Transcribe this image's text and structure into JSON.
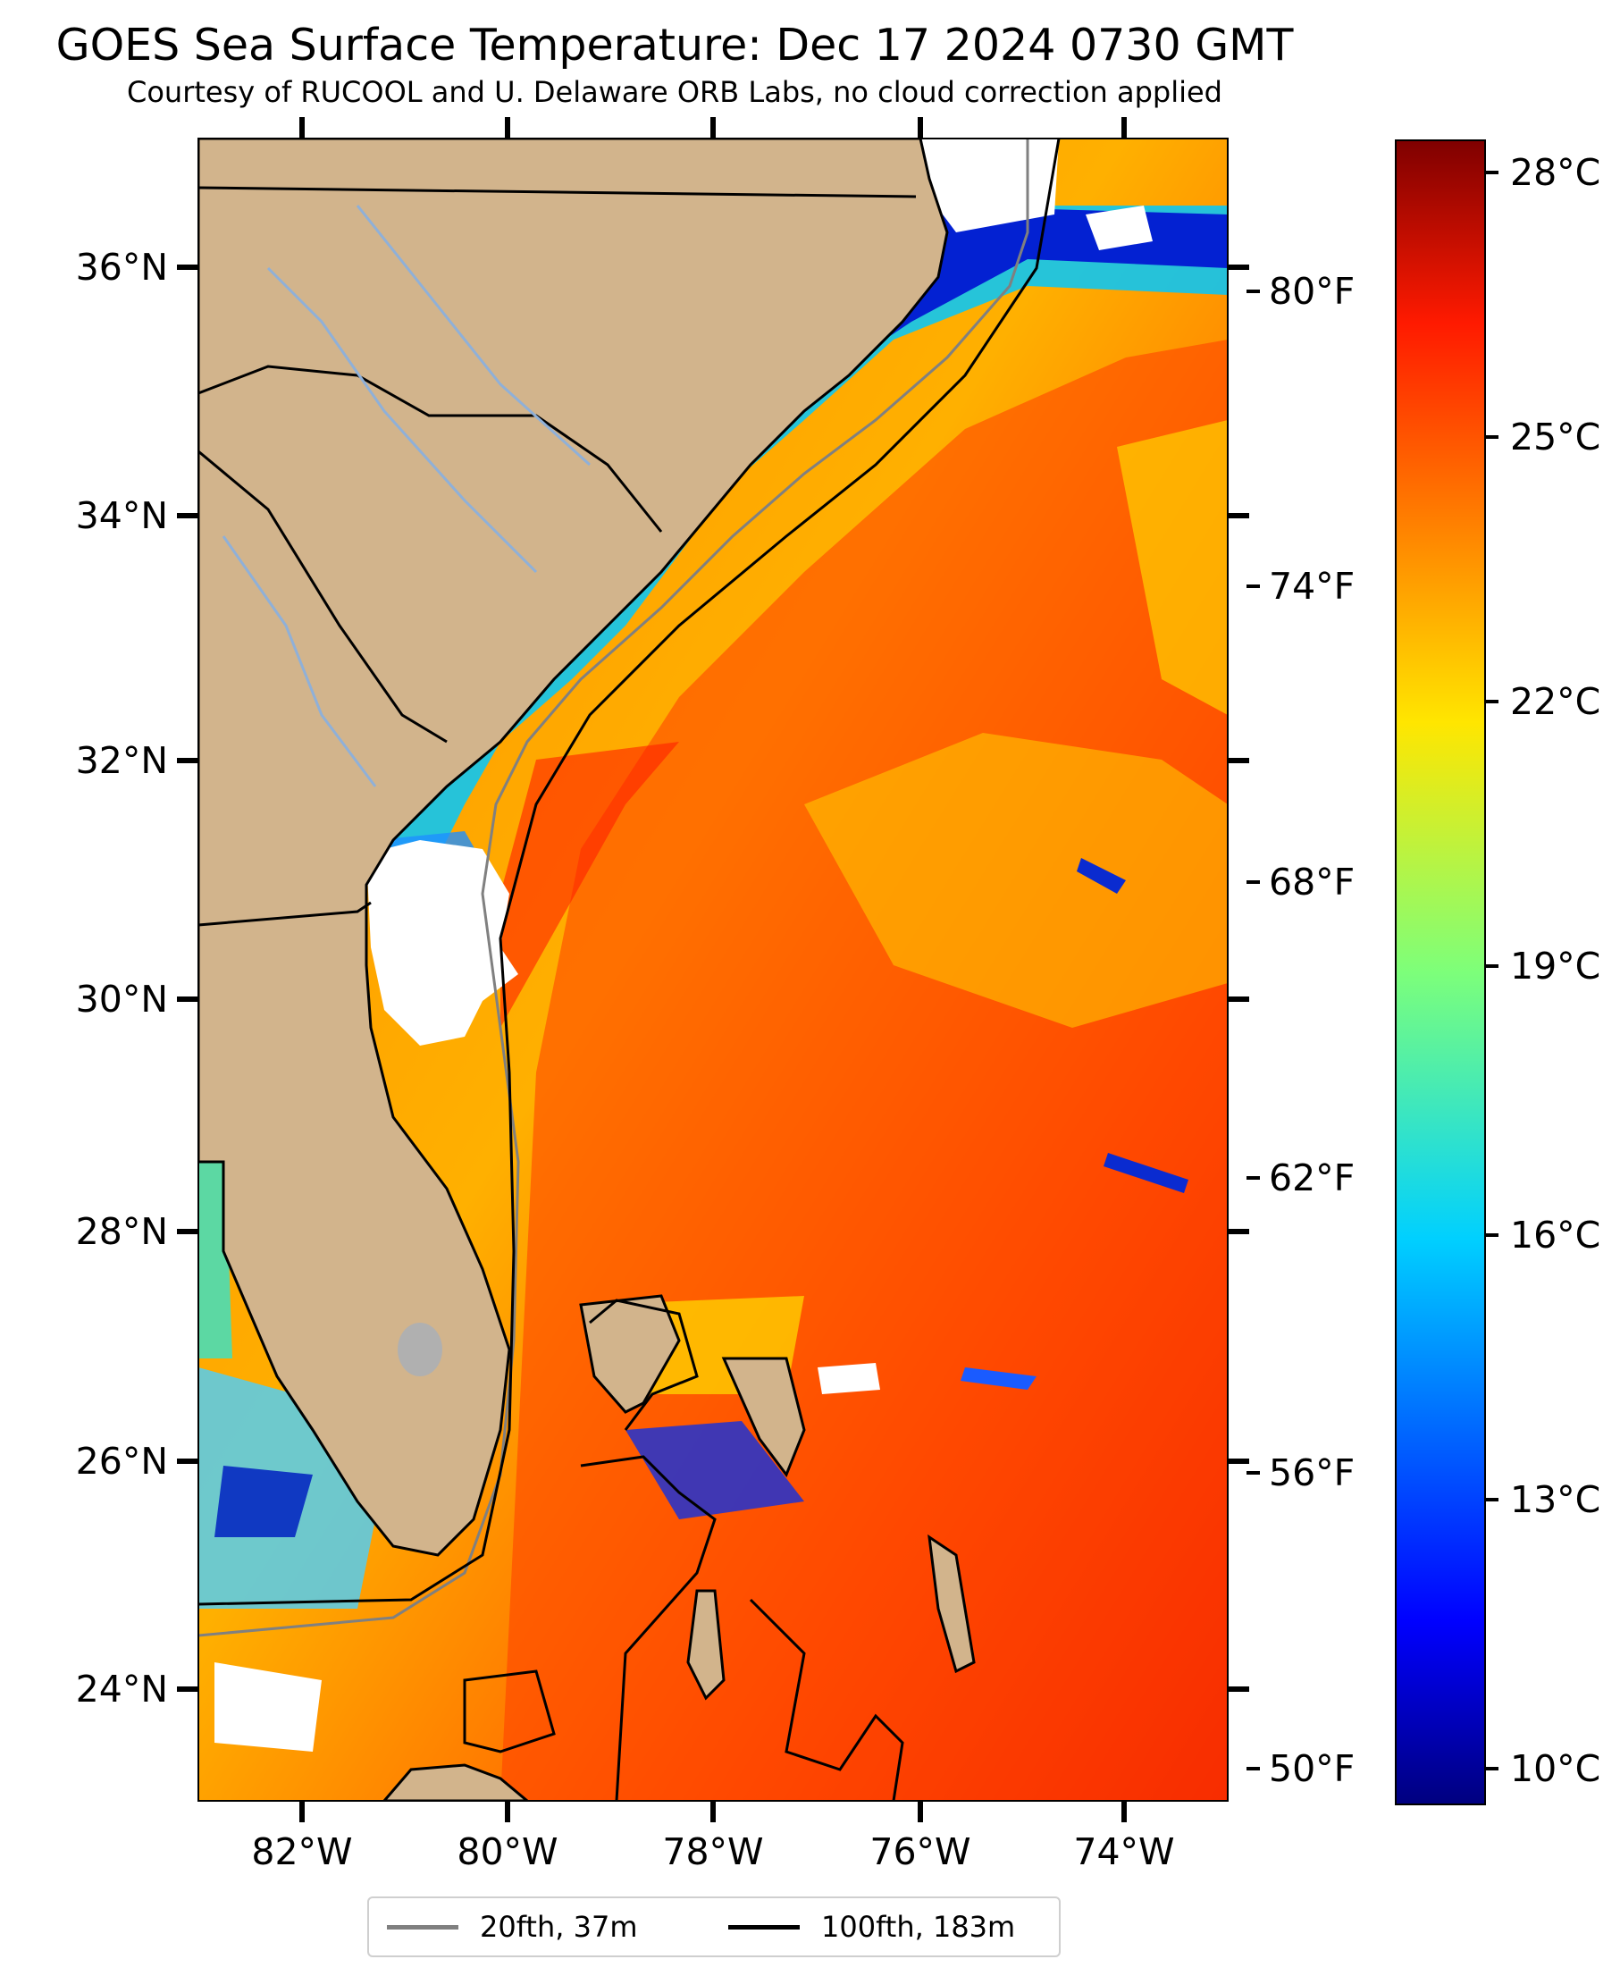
{
  "map": {
    "title": "GOES Sea Surface Temperature: Dec 17 2024 0730 GMT",
    "subtitle": "Courtesy of RUCOOL and U. Delaware ORB Labs, no cloud correction applied",
    "lat_labels": [
      "36°N",
      "34°N",
      "32°N",
      "30°N",
      "28°N",
      "26°N",
      "24°N"
    ],
    "lon_labels": [
      "82°W",
      "80°W",
      "78°W",
      "76°W",
      "74°W"
    ],
    "extent": {
      "lon": [
        -83,
        -73
      ],
      "lat": [
        23.1,
        37
      ]
    },
    "land_color": "#d2b48c",
    "no_data_color": "#ffffff"
  },
  "colorbar": {
    "celsius_labels": [
      "28°C",
      "25°C",
      "22°C",
      "19°C",
      "16°C",
      "13°C",
      "10°C"
    ],
    "fahrenheit_labels": [
      "80°F",
      "74°F",
      "68°F",
      "62°F",
      "56°F",
      "50°F"
    ],
    "range_c": [
      9.4,
      28.3
    ],
    "colormap": "jet"
  },
  "legend": {
    "items": [
      {
        "label": "20fth, 37m",
        "color": "#808080"
      },
      {
        "label": "100fth, 183m",
        "color": "#000000"
      }
    ]
  }
}
